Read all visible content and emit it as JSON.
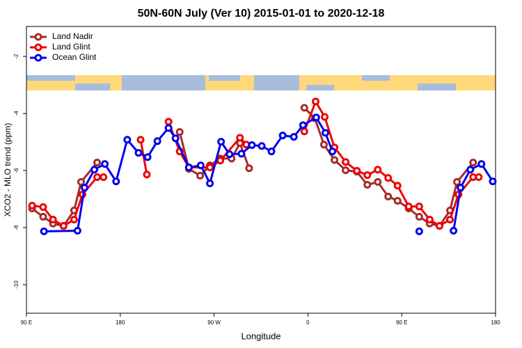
{
  "chart_data": {
    "type": "line",
    "title": "50N-60N July (Ver 10)   2015-01-01 to 2020-12-18",
    "xlabel": "Longitude",
    "ylabel": "XCO2 - MLO trend (ppm)",
    "xlim": [
      90,
      540
    ],
    "ylim": [
      -11,
      -0.95
    ],
    "xticks": [
      {
        "value": 90,
        "label": "90 E"
      },
      180,
      {
        "value": 270,
        "label": "90 W"
      },
      {
        "value": 360,
        "label": "0"
      },
      {
        "value": 450,
        "label": "90 E"
      },
      {
        "value": 540,
        "label": "180"
      }
    ],
    "yticks": [
      -10,
      -8,
      -6,
      -4,
      -2
    ],
    "legend": "top-left",
    "series": [
      {
        "name": "Land Nadir",
        "color": "#a52a2a",
        "x": [
          95.4,
          106,
          115.5,
          125.6,
          135.7,
          142.4,
          157.8,
          null,
          237,
          245.8,
          256.6,
          266,
          276,
          286.8,
          294.8,
          303.6,
          null,
          356.6,
          366.7,
          375.4,
          385.5,
          396.2,
          407,
          417,
          427,
          437,
          446,
          456.7,
          466.8,
          476.8,
          486.2,
          496.3,
          503,
          518.5
        ],
        "values": [
          -7.33,
          -7.62,
          -7.86,
          -7.94,
          -7.4,
          -6.4,
          -5.72,
          null,
          -4.65,
          -5.94,
          -6.18,
          -5.82,
          -5.58,
          -5.58,
          -5.04,
          -5.92,
          null,
          -3.8,
          -4.17,
          -5.09,
          -5.63,
          -5.99,
          -6.04,
          -6.5,
          -6.4,
          -6.91,
          -7.06,
          -7.33,
          -7.62,
          -7.86,
          -7.94,
          -7.4,
          -6.4,
          -5.72
        ]
      },
      {
        "name": "Land Glint",
        "color": "#ee0000",
        "x": [
          95.4,
          106,
          115.5,
          125.6,
          135.7,
          143.7,
          157.8,
          163.9,
          null,
          199.5,
          205.5,
          null,
          226.3,
          237,
          245.8,
          266,
          276,
          294.8,
          300.9,
          null,
          356.6,
          367.4,
          376.1,
          385.5,
          396.2,
          407,
          417,
          427,
          437,
          446,
          456.7,
          466.8,
          476.8,
          486.2,
          496.3,
          504.4,
          518.5,
          523.9
        ],
        "values": [
          -7.23,
          -7.28,
          -7.72,
          -7.94,
          -7.72,
          -6.84,
          -6.23,
          -6.23,
          null,
          -4.92,
          -6.14,
          null,
          -4.29,
          -5.33,
          -5.89,
          -5.89,
          -5.65,
          -4.85,
          -5.09,
          null,
          -4.63,
          -3.58,
          -4.12,
          -5.19,
          -5.7,
          -6.01,
          -6.16,
          -5.97,
          -6.26,
          -6.53,
          -7.26,
          -7.26,
          -7.72,
          -7.94,
          -7.72,
          -6.84,
          -6.23,
          -6.23
        ]
      },
      {
        "name": "Ocean Glint",
        "color": "#0000ee",
        "x": [
          106.8,
          139,
          145.7,
          155.1,
          165.2,
          176,
          186.7,
          197.5,
          206.2,
          215.6,
          226.3,
          233,
          245.8,
          257.2,
          266,
          276.7,
          284.8,
          296.2,
          306.3,
          315.7,
          325,
          335.8,
          346.5,
          355.3,
          368,
          376.8,
          383.5,
          null,
          466.8,
          null,
          499.7,
          506.4,
          515.8,
          526.5,
          537.3
        ],
        "values": [
          -8.13,
          -8.11,
          -6.6,
          -5.97,
          -5.77,
          -6.38,
          -4.92,
          -5.38,
          -5.53,
          -4.97,
          -4.51,
          -4.87,
          -5.89,
          -5.82,
          -6.45,
          -4.99,
          -5.43,
          -5.41,
          -5.11,
          -5.14,
          -5.33,
          -4.77,
          -4.82,
          -4.41,
          -4.14,
          -4.68,
          -5.33,
          null,
          -8.13,
          null,
          -8.11,
          -6.6,
          -5.97,
          -5.77,
          -6.38
        ]
      }
    ]
  }
}
